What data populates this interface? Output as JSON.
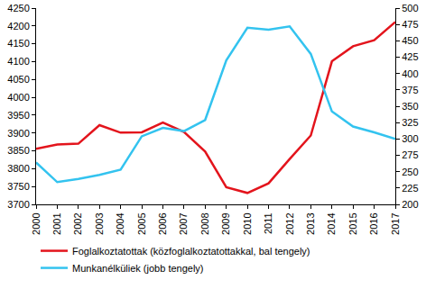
{
  "chart_data": {
    "type": "line",
    "categories": [
      "2000",
      "2001",
      "2002",
      "2003",
      "2004",
      "2005",
      "2006",
      "2007",
      "2008",
      "2009",
      "2010",
      "2011",
      "2012",
      "2013",
      "2014",
      "2015",
      "2016",
      "2017"
    ],
    "series": [
      {
        "name": "Foglalkoztatottak (közfoglalkoztatottakkal, bal tengely)",
        "color": "#e3141c",
        "values": [
          3856,
          3868,
          3870,
          3922,
          3901,
          3902,
          3929,
          3903,
          3848,
          3748,
          3732,
          3759,
          3827,
          3893,
          4101,
          4143,
          4160,
          4211
        ]
      },
      {
        "name": "Munkanélküliek (jobb tengely)",
        "color": "#33c3ef",
        "axis": "y2",
        "values": [
          264,
          234,
          239,
          245,
          253,
          304,
          317,
          312,
          329,
          420,
          470,
          467,
          472,
          430,
          342,
          319,
          310,
          300
        ]
      }
    ],
    "ylim": [
      3700,
      4250
    ],
    "yticks": [
      3700,
      3750,
      3800,
      3850,
      3900,
      3950,
      4000,
      4050,
      4100,
      4150,
      4200,
      4250
    ],
    "y2lim": [
      200,
      500
    ],
    "y2ticks": [
      200,
      225,
      250,
      275,
      300,
      325,
      350,
      375,
      400,
      425,
      450,
      475,
      500
    ],
    "grid": false,
    "legend": "bottom"
  }
}
